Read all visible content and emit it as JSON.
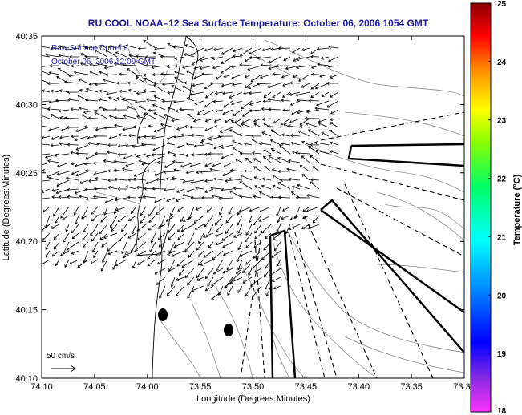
{
  "title": "RU COOL  NOAA–12  Sea Surface Temperature:  October 06, 2006 1054 GMT",
  "annotation": {
    "line1": "Raw Surface Current",
    "line2": "October 06, 2006 12:00 GMT"
  },
  "scale": {
    "label": "50 cm/s"
  },
  "axes": {
    "xlabel": "Longitude (Degrees:Minutes)",
    "ylabel": "Latitude (Degrees:Minutes)",
    "xticks": [
      "74:10",
      "74:05",
      "74:00",
      "73:55",
      "73:50",
      "73:45",
      "73:40",
      "73:35",
      "73:3"
    ],
    "yticks": [
      "40:35",
      "40:30",
      "40:25",
      "40:20",
      "40:15",
      "40:10"
    ]
  },
  "colorbar": {
    "label": "Temperature (°C)",
    "ticks": [
      "25",
      "24",
      "23",
      "22",
      "21",
      "20",
      "19",
      "18"
    ],
    "min": 18,
    "max": 25
  },
  "colors": {
    "title": "#1a1a9e",
    "land_contour": "#000000",
    "bathymetry": "#8c8c8c"
  }
}
